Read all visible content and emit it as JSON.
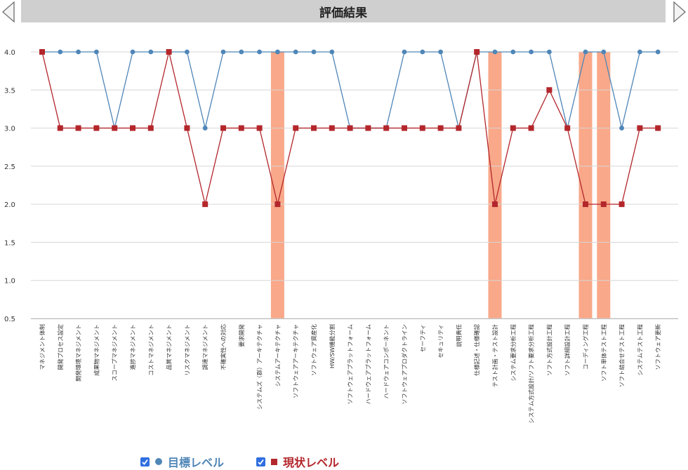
{
  "header": {
    "title": "評価結果"
  },
  "colors": {
    "target": "#4f86b8",
    "current": "#b3262b",
    "highlight": "#f9a889",
    "grid": "#d6d6d6",
    "title_bar": "#cfcfcf",
    "checkbox": "#2f6fe0"
  },
  "icons": {
    "prev": "triangle-left-icon",
    "next": "triangle-right-icon",
    "checkbox": "check-icon"
  },
  "legend": [
    {
      "label": "目標レベル",
      "marker": "circle",
      "checked": true
    },
    {
      "label": "現状レベル",
      "marker": "square",
      "checked": true
    }
  ],
  "chart_data": {
    "type": "line",
    "ylim": [
      0.5,
      4.0
    ],
    "yticks": [
      "0.5",
      "1.0",
      "1.5",
      "2.0",
      "2.5",
      "3.0",
      "3.5",
      "4.0"
    ],
    "grid": true,
    "legend_position": "bottom",
    "categories": [
      "マネジメント体制",
      "開発プロセス設定",
      "開発環境マネジメント",
      "成果物マネジメント",
      "スコープマネジメント",
      "進捗マネジメント",
      "コストマネジメント",
      "品質マネジメント",
      "リスクマネジメント",
      "調達マネジメント",
      "不確実性への対応",
      "要求開発",
      "システムズ（群）アーキテクチャ",
      "システムアーキテクチャ",
      "ソフトウェアアーキテクチャ",
      "ソフトウェア資産化",
      "HW/SW機能分割",
      "ソフトウェアプラットフォーム",
      "ハードウェアプラットフォーム",
      "ハードウェアコンポーネント",
      "ソフトウェアプロダクトライン",
      "セーフティ",
      "セキュリティ",
      "説明責任",
      "仕様記述・仕様確認",
      "テスト計画・テスト設計",
      "システム要求分析工程",
      "システム方式設計/ソフト要求分析工程",
      "ソフト方式設計工程",
      "ソフト詳細設計工程",
      "コーディング工程",
      "ソフト単体テスト工程",
      "ソフト結合せテスト工程",
      "システムテスト工程",
      "ソフトウェア更新"
    ],
    "series": [
      {
        "name": "目標レベル",
        "marker": "circle",
        "values": [
          4,
          4,
          4,
          4,
          3,
          4,
          4,
          4,
          4,
          3,
          4,
          4,
          4,
          4,
          4,
          4,
          4,
          3,
          3,
          3,
          4,
          4,
          4,
          3,
          4,
          4,
          4,
          4,
          4,
          3,
          4,
          4,
          3,
          4,
          4
        ]
      },
      {
        "name": "現状レベル",
        "marker": "square",
        "values": [
          4,
          3,
          3,
          3,
          3,
          3,
          3,
          4,
          3,
          2,
          3,
          3,
          3,
          2,
          3,
          3,
          3,
          3,
          3,
          3,
          3,
          3,
          3,
          3,
          4,
          2,
          3,
          3,
          3.5,
          3,
          2,
          2,
          2,
          3,
          3
        ]
      }
    ],
    "highlighted_categories": [
      13,
      25,
      30,
      31
    ]
  }
}
